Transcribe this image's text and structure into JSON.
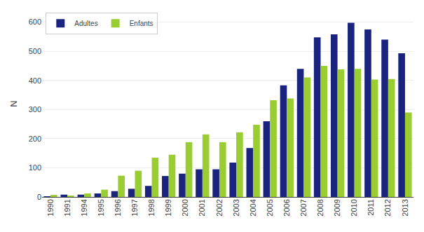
{
  "chart_data": {
    "type": "bar",
    "categories": [
      "1990",
      "1991",
      "1994",
      "1995",
      "1996",
      "1997",
      "1998",
      "1999",
      "2000",
      "2001",
      "2002",
      "2003",
      "2004",
      "2005",
      "2006",
      "2007",
      "2008",
      "2009",
      "2010",
      "2011",
      "2012",
      "2013"
    ],
    "series": [
      {
        "name": "Adultes",
        "color": "#1a237e",
        "values": [
          2,
          8,
          8,
          12,
          20,
          28,
          38,
          72,
          80,
          95,
          95,
          118,
          168,
          260,
          383,
          440,
          548,
          558,
          598,
          575,
          540,
          493
        ]
      },
      {
        "name": "Enfants",
        "color": "#9acd32",
        "values": [
          7,
          3,
          12,
          25,
          73,
          90,
          135,
          145,
          188,
          215,
          188,
          222,
          248,
          332,
          338,
          410,
          450,
          438,
          440,
          403,
          405,
          290
        ]
      }
    ],
    "ylabel": "N",
    "ylim": [
      0,
      640
    ],
    "yticks": [
      0,
      100,
      200,
      300,
      400,
      500,
      600
    ],
    "grid": true,
    "legend": "upper left"
  }
}
